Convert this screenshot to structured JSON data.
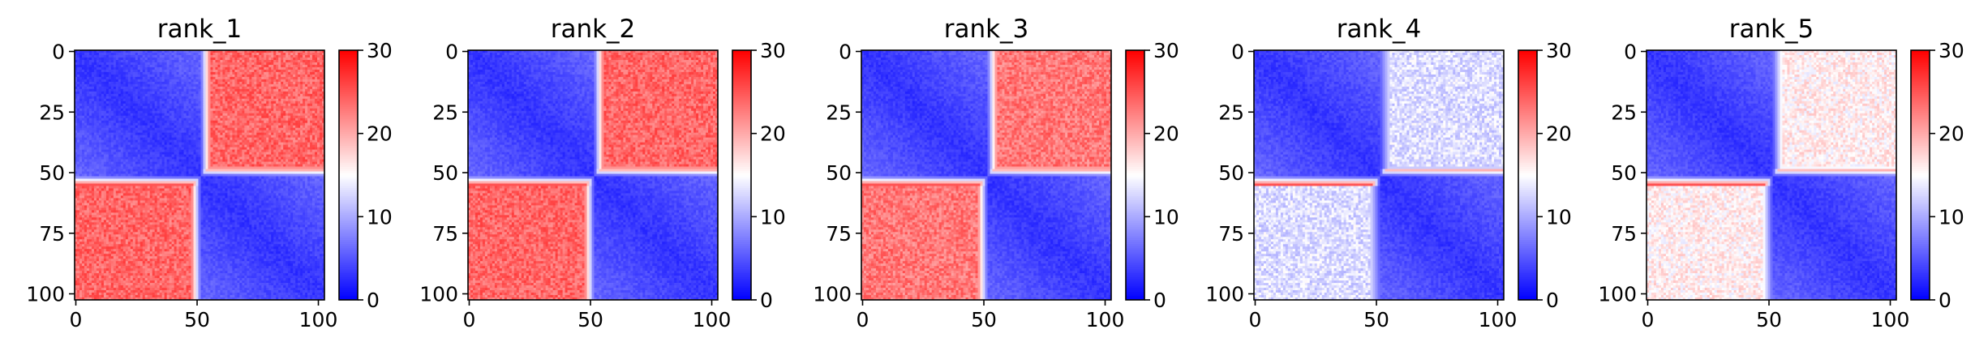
{
  "chart_data": [
    {
      "type": "heatmap",
      "title": "rank_1",
      "n": 103,
      "xticks": [
        0,
        50,
        100
      ],
      "yticks": [
        0,
        25,
        50,
        75,
        100
      ],
      "clim": [
        0,
        30
      ],
      "colorbar_ticks": [
        0,
        10,
        20,
        30
      ],
      "colormap": "bwr",
      "offdiag_level": 24,
      "near_level": 3
    },
    {
      "type": "heatmap",
      "title": "rank_2",
      "n": 103,
      "xticks": [
        0,
        50,
        100
      ],
      "yticks": [
        0,
        25,
        50,
        75,
        100
      ],
      "clim": [
        0,
        30
      ],
      "colorbar_ticks": [
        0,
        10,
        20,
        30
      ],
      "colormap": "bwr",
      "offdiag_level": 24,
      "near_level": 3
    },
    {
      "type": "heatmap",
      "title": "rank_3",
      "n": 103,
      "xticks": [
        0,
        50,
        100
      ],
      "yticks": [
        0,
        25,
        50,
        75,
        100
      ],
      "clim": [
        0,
        30
      ],
      "colorbar_ticks": [
        0,
        10,
        20,
        30
      ],
      "colormap": "bwr",
      "offdiag_level": 23,
      "near_level": 3
    },
    {
      "type": "heatmap",
      "title": "rank_4",
      "n": 103,
      "xticks": [
        0,
        50,
        100
      ],
      "yticks": [
        0,
        25,
        50,
        75,
        100
      ],
      "clim": [
        0,
        30
      ],
      "colorbar_ticks": [
        0,
        10,
        20,
        30
      ],
      "colormap": "bwr",
      "offdiag_level": 13,
      "near_level": 3
    },
    {
      "type": "heatmap",
      "title": "rank_5",
      "n": 103,
      "xticks": [
        0,
        50,
        100
      ],
      "yticks": [
        0,
        25,
        50,
        75,
        100
      ],
      "clim": [
        0,
        30
      ],
      "colorbar_ticks": [
        0,
        10,
        20,
        30
      ],
      "colormap": "bwr",
      "offdiag_level": 16,
      "near_level": 3
    }
  ]
}
